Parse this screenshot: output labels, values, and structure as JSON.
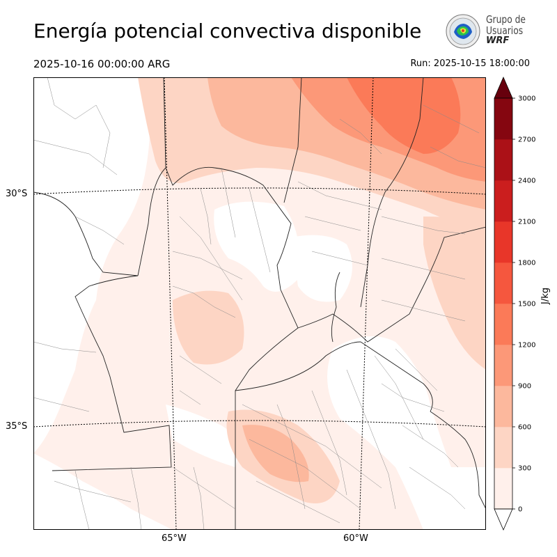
{
  "header": {
    "title": "Energía potencial convectiva disponible",
    "valid_time": "2025-10-16 00:00:00 ARG",
    "run_time": "Run: 2025-10-15 18:00:00"
  },
  "logo": {
    "line1": "Grupo de",
    "line2": "Usuarios",
    "line3": "WRF"
  },
  "map": {
    "lat_labels": [
      "30°S",
      "35°S"
    ],
    "lon_labels": [
      "65°W",
      "60°W"
    ]
  },
  "colorbar": {
    "units": "J/kg",
    "ticks": [
      "0",
      "300",
      "600",
      "900",
      "1200",
      "1500",
      "1800",
      "2100",
      "2400",
      "2700",
      "3000"
    ],
    "colors": [
      "#fff0eb",
      "#fdd5c4",
      "#fcb89d",
      "#fc9878",
      "#fb7a58",
      "#f5573e",
      "#e83629",
      "#cb1e1e",
      "#ab1117",
      "#850610"
    ],
    "over_color": "#67000d"
  }
}
